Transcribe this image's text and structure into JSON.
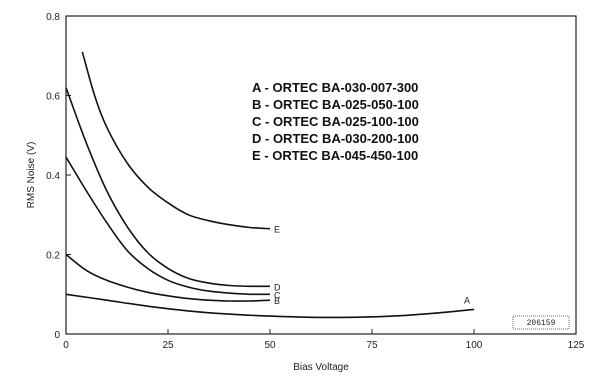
{
  "chart_data": {
    "type": "line",
    "title": "",
    "xlabel": "Bias Voltage",
    "ylabel": "RMS Noise (V)",
    "xlim": [
      0,
      125
    ],
    "ylim": [
      0,
      0.8
    ],
    "xticks": [
      0,
      25,
      50,
      75,
      100,
      125
    ],
    "yticks": [
      0,
      0.2,
      0.4,
      0.6,
      0.8
    ],
    "xtick_labels": [
      "0",
      "25",
      "50",
      "75",
      "100",
      "125"
    ],
    "ytick_labels": [
      "0",
      "0.2",
      "0.4",
      "0.6",
      "0.8"
    ],
    "legend": [
      "A - ORTEC BA-030-007-300",
      "B - ORTEC BA-025-050-100",
      "C - ORTEC BA-025-100-100",
      "D - ORTEC BA-030-200-100",
      "E - ORTEC BA-045-450-100"
    ],
    "legend_position": "top-right",
    "series": [
      {
        "name": "A",
        "x": [
          0,
          10,
          20,
          30,
          40,
          50,
          60,
          70,
          80,
          90,
          100
        ],
        "y": [
          0.1,
          0.085,
          0.07,
          0.058,
          0.05,
          0.045,
          0.042,
          0.042,
          0.045,
          0.052,
          0.062
        ]
      },
      {
        "name": "B",
        "x": [
          0,
          5,
          10,
          15,
          20,
          25,
          30,
          35,
          40,
          45,
          50
        ],
        "y": [
          0.2,
          0.16,
          0.135,
          0.118,
          0.105,
          0.096,
          0.089,
          0.085,
          0.083,
          0.083,
          0.085
        ]
      },
      {
        "name": "C",
        "x": [
          0,
          5,
          10,
          15,
          20,
          25,
          30,
          35,
          40,
          45,
          50
        ],
        "y": [
          0.445,
          0.36,
          0.28,
          0.21,
          0.165,
          0.135,
          0.118,
          0.108,
          0.103,
          0.1,
          0.1
        ]
      },
      {
        "name": "D",
        "x": [
          0,
          5,
          10,
          15,
          20,
          25,
          30,
          35,
          40,
          45,
          50
        ],
        "y": [
          0.62,
          0.48,
          0.36,
          0.27,
          0.205,
          0.165,
          0.14,
          0.128,
          0.122,
          0.12,
          0.12
        ]
      },
      {
        "name": "E",
        "x": [
          4,
          7,
          10,
          15,
          20,
          25,
          30,
          35,
          40,
          45,
          50
        ],
        "y": [
          0.71,
          0.6,
          0.52,
          0.43,
          0.37,
          0.33,
          0.3,
          0.285,
          0.275,
          0.268,
          0.265
        ]
      }
    ],
    "curve_labels": [
      "A",
      "B",
      "C",
      "D",
      "E"
    ],
    "annotation": "206159",
    "grid": false
  }
}
